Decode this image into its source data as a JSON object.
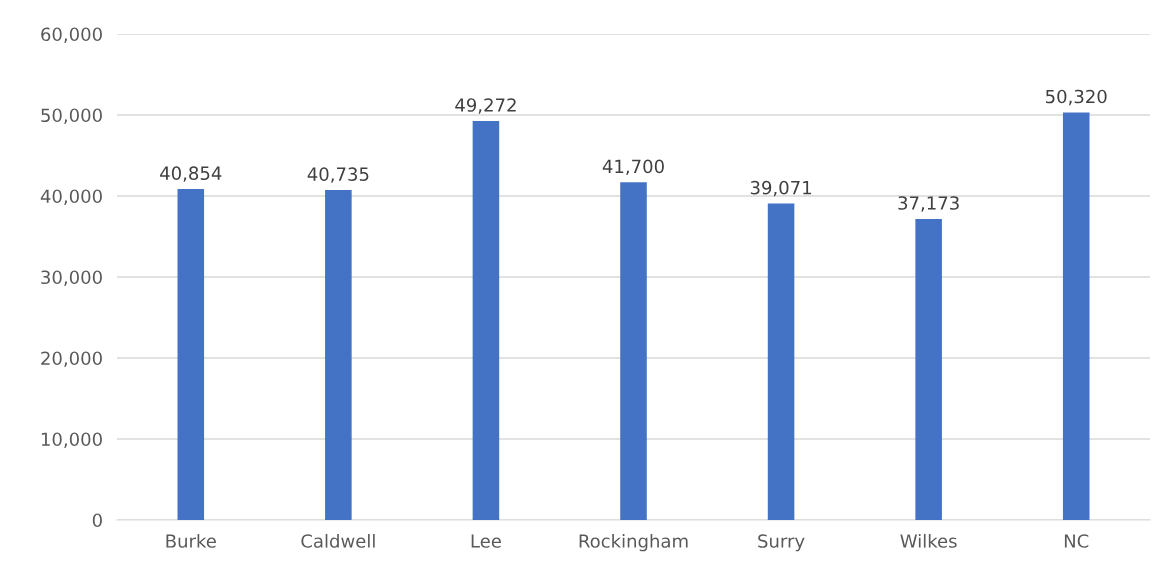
{
  "chart_data": {
    "type": "bar",
    "categories": [
      "Burke",
      "Caldwell",
      "Lee",
      "Rockingham",
      "Surry",
      "Wilkes",
      "NC"
    ],
    "values": [
      40854,
      40735,
      49272,
      41700,
      39071,
      37173,
      50320
    ],
    "value_labels": [
      "40,854",
      "40,735",
      "49,272",
      "41,700",
      "39,071",
      "37,173",
      "50,320"
    ],
    "color": "#4472c4",
    "ylim": [
      0,
      60000
    ],
    "yticks": [
      {
        "value": 0,
        "label": "0"
      },
      {
        "value": 10000,
        "label": "10,000"
      },
      {
        "value": 20000,
        "label": "20,000"
      },
      {
        "value": 30000,
        "label": "30,000"
      },
      {
        "value": 40000,
        "label": "40,000"
      },
      {
        "value": 50000,
        "label": "50,000"
      },
      {
        "value": 60000,
        "label": "60,000"
      }
    ],
    "grid": "y"
  }
}
